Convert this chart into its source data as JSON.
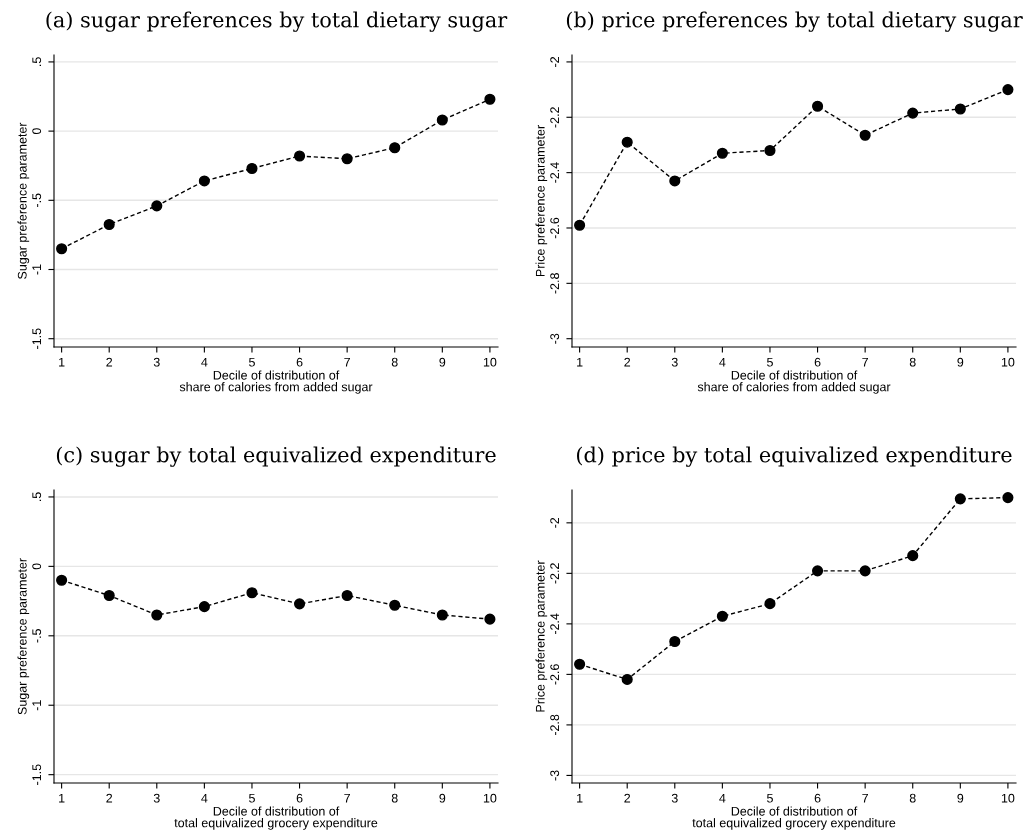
{
  "chart_data": [
    {
      "type": "line",
      "title": "(a) sugar preferences by total dietary sugar",
      "xlabel": "Decile of distribution of\nshare of calories from added sugar",
      "ylabel": "Sugar preference parameter",
      "x": [
        1,
        2,
        3,
        4,
        5,
        6,
        7,
        8,
        9,
        10
      ],
      "series": [
        {
          "color": "#000000",
          "values": [
            -0.85,
            -0.675,
            -0.54,
            -0.36,
            -0.27,
            -0.18,
            -0.2,
            -0.12,
            0.08,
            0.23
          ]
        }
      ],
      "xlim": [
        0.84,
        10.17
      ],
      "xticks": [
        1,
        2,
        3,
        4,
        5,
        6,
        7,
        8,
        9,
        10
      ],
      "ylim": [
        -1.56,
        0.55
      ],
      "yticks": [
        {
          "value": -1.5,
          "label": "-1.5"
        },
        {
          "value": -1,
          "label": "-1"
        },
        {
          "value": -0.5,
          "label": "-.5"
        },
        {
          "value": 0,
          "label": "0"
        },
        {
          "value": 0.5,
          "label": ".5"
        }
      ],
      "grid": "y",
      "marker": "circle",
      "line_style": "dashed"
    },
    {
      "type": "line",
      "title": "(b) price preferences by total dietary sugar",
      "xlabel": "Decile of distribution of\nshare of calories from added sugar",
      "ylabel": "Price preference parameter",
      "x": [
        1,
        2,
        3,
        4,
        5,
        6,
        7,
        8,
        9,
        10
      ],
      "series": [
        {
          "color": "#000000",
          "values": [
            -2.59,
            -2.29,
            -2.43,
            -2.33,
            -2.32,
            -2.16,
            -2.265,
            -2.185,
            -2.17,
            -2.1
          ]
        }
      ],
      "xlim": [
        0.84,
        10.17
      ],
      "xticks": [
        1,
        2,
        3,
        4,
        5,
        6,
        7,
        8,
        9,
        10
      ],
      "ylim": [
        -3.03,
        -1.975
      ],
      "yticks": [
        {
          "value": -3,
          "label": "-3"
        },
        {
          "value": -2.8,
          "label": "-2.8"
        },
        {
          "value": -2.6,
          "label": "-2.6"
        },
        {
          "value": -2.4,
          "label": "-2.4"
        },
        {
          "value": -2.2,
          "label": "-2.2"
        },
        {
          "value": -2,
          "label": "-2"
        }
      ],
      "grid": "y",
      "marker": "circle",
      "line_style": "dashed"
    },
    {
      "type": "line",
      "title": "(c) sugar by total equivalized expenditure",
      "xlabel": "Decile of distribution of\ntotal equivalized grocery expenditure",
      "ylabel": "Sugar preference parameter",
      "x": [
        1,
        2,
        3,
        4,
        5,
        6,
        7,
        8,
        9,
        10
      ],
      "series": [
        {
          "color": "#000000",
          "values": [
            -0.1,
            -0.21,
            -0.35,
            -0.29,
            -0.19,
            -0.27,
            -0.21,
            -0.28,
            -0.35,
            -0.38
          ]
        }
      ],
      "xlim": [
        0.84,
        10.17
      ],
      "xticks": [
        1,
        2,
        3,
        4,
        5,
        6,
        7,
        8,
        9,
        10
      ],
      "ylim": [
        -1.56,
        0.55
      ],
      "yticks": [
        {
          "value": -1.5,
          "label": "-1.5"
        },
        {
          "value": -1,
          "label": "-1"
        },
        {
          "value": -0.5,
          "label": "-.5"
        },
        {
          "value": 0,
          "label": "0"
        },
        {
          "value": 0.5,
          "label": ".5"
        }
      ],
      "grid": "y",
      "marker": "circle",
      "line_style": "dashed"
    },
    {
      "type": "line",
      "title": "(d) price by total equivalized expenditure",
      "xlabel": "Decile of distribution of\ntotal equivalized grocery expenditure",
      "ylabel": "Price preference parameter",
      "x": [
        1,
        2,
        3,
        4,
        5,
        6,
        7,
        8,
        9,
        10
      ],
      "series": [
        {
          "color": "#000000",
          "values": [
            -2.56,
            -2.62,
            -2.47,
            -2.37,
            -2.32,
            -2.19,
            -2.19,
            -2.13,
            -1.905,
            -1.9
          ]
        }
      ],
      "xlim": [
        0.84,
        10.17
      ],
      "xticks": [
        1,
        2,
        3,
        4,
        5,
        6,
        7,
        8,
        9,
        10
      ],
      "ylim": [
        -3.03,
        -1.87
      ],
      "yticks": [
        {
          "value": -3,
          "label": "-3"
        },
        {
          "value": -2.8,
          "label": "-2.8"
        },
        {
          "value": -2.6,
          "label": "-2.6"
        },
        {
          "value": -2.4,
          "label": "-2.4"
        },
        {
          "value": -2.2,
          "label": "-2.2"
        },
        {
          "value": -2,
          "label": "-2"
        }
      ],
      "grid": "y",
      "marker": "circle",
      "line_style": "dashed"
    }
  ]
}
